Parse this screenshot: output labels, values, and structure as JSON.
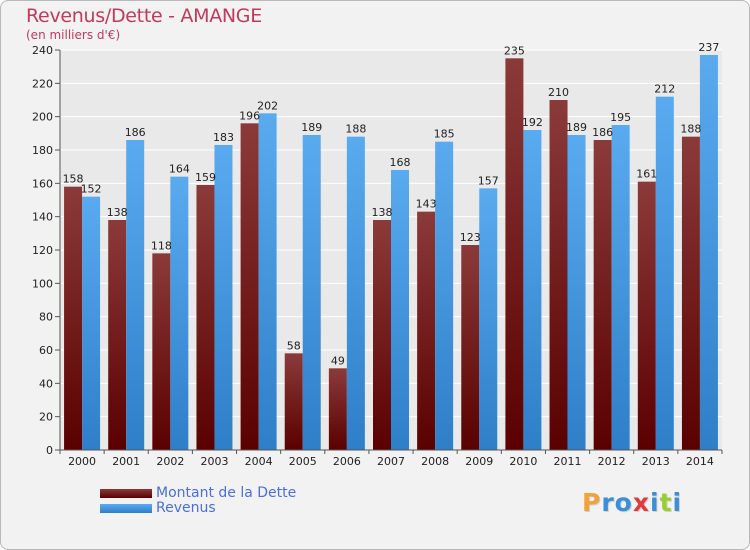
{
  "brand": {
    "letters": [
      "P",
      "r",
      "o",
      "x",
      "i",
      "t",
      "i"
    ],
    "colors": [
      "#f2a23a",
      "#3a8fd8",
      "#3a8fd8",
      "#e23a3a",
      "#3a8fd8",
      "#9acd32",
      "#3a8fd8"
    ]
  },
  "colors": {
    "dette_top": "#8b3a3a",
    "dette_bottom": "#5a0000",
    "revenus_top": "#5aaaf0",
    "revenus_bottom": "#2e7fc8",
    "grid": "#ffffff",
    "title": "#c03a5c"
  },
  "chart_data": {
    "type": "bar",
    "title": "Revenus/Dette - AMANGE",
    "subtitle": "(en milliers d'€)",
    "xlabel": "",
    "ylabel": "",
    "ylim": [
      0,
      240
    ],
    "yticks": [
      0,
      20,
      40,
      60,
      80,
      100,
      120,
      140,
      160,
      180,
      200,
      220,
      240
    ],
    "grid": true,
    "legend_position": "bottom-left",
    "categories": [
      "2000",
      "2001",
      "2002",
      "2003",
      "2004",
      "2005",
      "2006",
      "2007",
      "2008",
      "2009",
      "2010",
      "2011",
      "2012",
      "2013",
      "2014"
    ],
    "series": [
      {
        "name": "Montant de la Dette",
        "values": [
          158,
          138,
          118,
          159,
          196,
          58,
          49,
          138,
          143,
          123,
          235,
          210,
          186,
          161,
          188
        ]
      },
      {
        "name": "Revenus",
        "values": [
          152,
          186,
          164,
          183,
          202,
          189,
          188,
          168,
          185,
          157,
          192,
          189,
          195,
          212,
          237
        ]
      }
    ]
  }
}
